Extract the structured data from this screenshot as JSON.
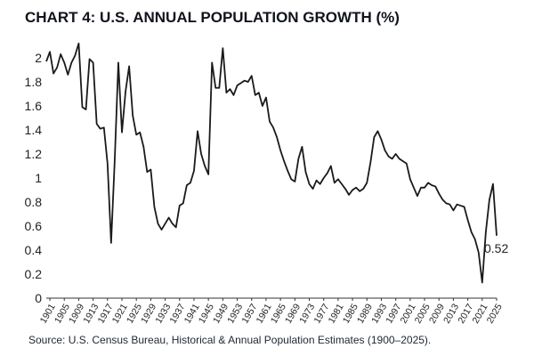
{
  "chart_data": {
    "type": "line",
    "title": "CHART 4: U.S. ANNUAL POPULATION GROWTH (%)",
    "source": "Source: U.S. Census Bureau, Historical & Annual Population Estimates (1900–2025).",
    "xlabel": "",
    "ylabel": "",
    "ylim": [
      0,
      2.2
    ],
    "xlim": [
      1900,
      2025
    ],
    "y_ticks": [
      0,
      0.2,
      0.4,
      0.6,
      0.8,
      1,
      1.2,
      1.4,
      1.6,
      1.8,
      2
    ],
    "y_tick_labels": [
      "0",
      "0.2",
      "0.4",
      "0.6",
      "0.8",
      "1",
      "1.2",
      "1.4",
      "1.6",
      "1.8",
      "2"
    ],
    "x_tick_labels": [
      "1901",
      "1905",
      "1909",
      "1913",
      "1917",
      "1921",
      "1925",
      "1929",
      "1933",
      "1937",
      "1941",
      "1945",
      "1949",
      "1953",
      "1957",
      "1961",
      "1965",
      "1969",
      "1973",
      "1977",
      "1981",
      "1985",
      "1989",
      "1993",
      "1997",
      "2001",
      "2005",
      "2009",
      "2013",
      "2017",
      "2021",
      "2025"
    ],
    "grid": false,
    "end_label": "0.52",
    "series": [
      {
        "name": "U.S. Annual Population Growth (%)",
        "color": "#1a1a1a",
        "x": [
          1900,
          1901,
          1902,
          1903,
          1904,
          1905,
          1906,
          1907,
          1908,
          1909,
          1910,
          1911,
          1912,
          1913,
          1914,
          1915,
          1916,
          1917,
          1918,
          1919,
          1920,
          1921,
          1922,
          1923,
          1924,
          1925,
          1926,
          1927,
          1928,
          1929,
          1930,
          1931,
          1932,
          1933,
          1934,
          1935,
          1936,
          1937,
          1938,
          1939,
          1940,
          1941,
          1942,
          1943,
          1944,
          1945,
          1946,
          1947,
          1948,
          1949,
          1950,
          1951,
          1952,
          1953,
          1954,
          1955,
          1956,
          1957,
          1958,
          1959,
          1960,
          1961,
          1962,
          1963,
          1964,
          1965,
          1966,
          1967,
          1968,
          1969,
          1970,
          1971,
          1972,
          1973,
          1974,
          1975,
          1976,
          1977,
          1978,
          1979,
          1980,
          1981,
          1982,
          1983,
          1984,
          1985,
          1986,
          1987,
          1988,
          1989,
          1990,
          1991,
          1992,
          1993,
          1994,
          1995,
          1996,
          1997,
          1998,
          1999,
          2000,
          2001,
          2002,
          2003,
          2004,
          2005,
          2006,
          2007,
          2008,
          2009,
          2010,
          2011,
          2012,
          2013,
          2014,
          2015,
          2016,
          2017,
          2018,
          2019,
          2020,
          2021,
          2022,
          2023,
          2024,
          2025
        ],
        "values": [
          1.97,
          2.05,
          1.87,
          1.92,
          2.03,
          1.96,
          1.86,
          1.96,
          2.02,
          2.12,
          1.59,
          1.57,
          1.99,
          1.96,
          1.45,
          1.41,
          1.42,
          1.12,
          0.46,
          1.15,
          1.96,
          1.38,
          1.72,
          1.93,
          1.52,
          1.36,
          1.38,
          1.26,
          1.05,
          1.07,
          0.76,
          0.62,
          0.57,
          0.62,
          0.67,
          0.62,
          0.59,
          0.77,
          0.79,
          0.94,
          0.96,
          1.06,
          1.39,
          1.2,
          1.1,
          1.03,
          1.96,
          1.75,
          1.75,
          2.08,
          1.71,
          1.74,
          1.69,
          1.77,
          1.79,
          1.81,
          1.8,
          1.85,
          1.69,
          1.71,
          1.6,
          1.67,
          1.47,
          1.42,
          1.34,
          1.23,
          1.14,
          1.06,
          0.99,
          0.97,
          1.16,
          1.26,
          1.05,
          0.95,
          0.91,
          0.98,
          0.95,
          1.0,
          1.04,
          1.1,
          0.96,
          0.99,
          0.95,
          0.91,
          0.86,
          0.9,
          0.92,
          0.89,
          0.91,
          0.96,
          1.13,
          1.34,
          1.39,
          1.32,
          1.23,
          1.18,
          1.16,
          1.2,
          1.16,
          1.14,
          1.12,
          0.99,
          0.92,
          0.85,
          0.92,
          0.92,
          0.96,
          0.94,
          0.93,
          0.87,
          0.82,
          0.79,
          0.78,
          0.73,
          0.78,
          0.77,
          0.76,
          0.65,
          0.55,
          0.49,
          0.38,
          0.13,
          0.55,
          0.82,
          0.95,
          0.52
        ]
      }
    ]
  }
}
